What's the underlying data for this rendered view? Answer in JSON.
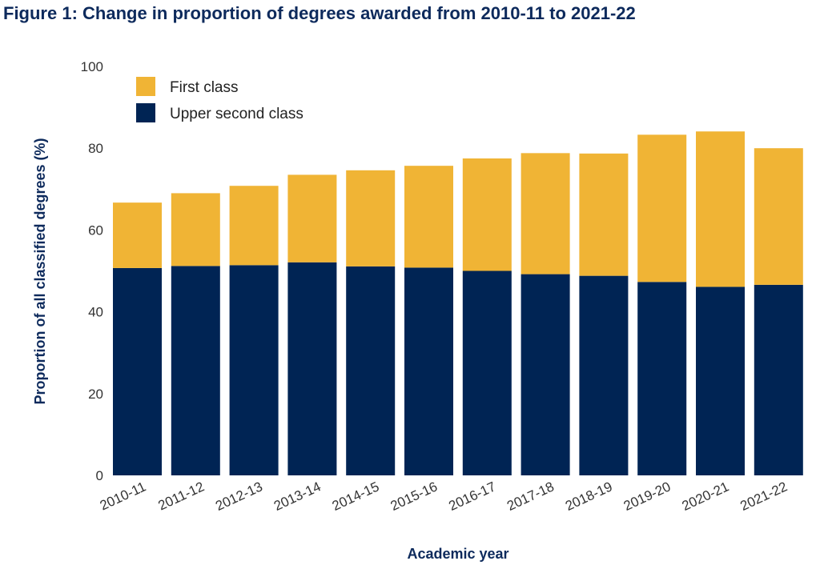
{
  "chart_data": {
    "type": "bar",
    "stacked": true,
    "title": "Figure 1: Change in proportion of degrees awarded from 2010-11 to 2021-22",
    "xlabel": "Academic year",
    "ylabel": "Proportion of all classified degrees (%)",
    "ylim": [
      0,
      100
    ],
    "yticks": [
      "0",
      "20",
      "40",
      "60",
      "80",
      "100"
    ],
    "categories": [
      "2010-11",
      "2011-12",
      "2012-13",
      "2013-14",
      "2014-15",
      "2015-16",
      "2016-17",
      "2017-18",
      "2018-19",
      "2019-20",
      "2020-21",
      "2021-22"
    ],
    "series": [
      {
        "name": "Upper second class",
        "color": "#002454",
        "values": [
          50.7,
          51.2,
          51.4,
          52.1,
          51.1,
          50.8,
          50.0,
          49.2,
          48.8,
          47.3,
          46.1,
          46.6
        ]
      },
      {
        "name": "First class",
        "color": "#f0b435",
        "values": [
          16.0,
          17.8,
          19.4,
          21.4,
          23.5,
          24.9,
          27.5,
          29.6,
          29.9,
          36.0,
          38.0,
          33.4
        ]
      }
    ],
    "legend": [
      {
        "label": "First class",
        "color": "#f0b435"
      },
      {
        "label": "Upper second class",
        "color": "#002454"
      }
    ],
    "legend_position": "top-left",
    "grid": false
  }
}
